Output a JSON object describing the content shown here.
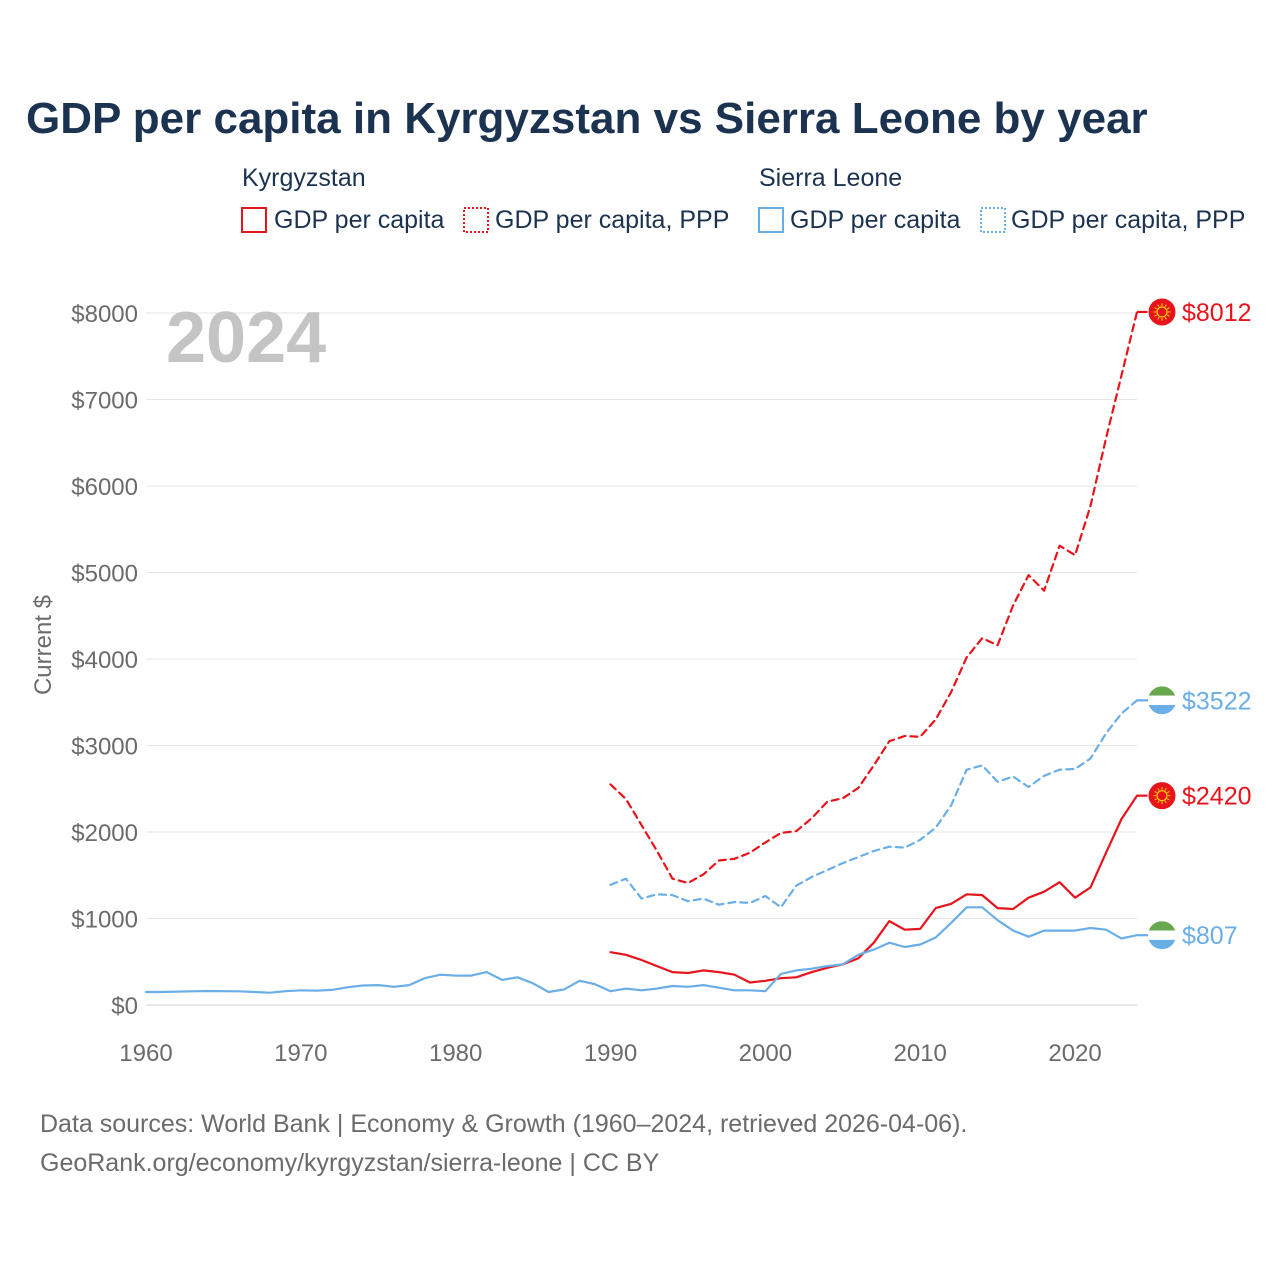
{
  "chart_data": {
    "type": "line",
    "title": "GDP per capita in Kyrgyzstan vs Sierra Leone by year",
    "ylabel": "Current $",
    "xlabel": "",
    "xlim": [
      1960,
      2024
    ],
    "ylim": [
      0,
      8000
    ],
    "year_label": "2024",
    "x_ticks": [
      1960,
      1970,
      1980,
      1990,
      2000,
      2010,
      2020
    ],
    "x_tick_labels": [
      "1960",
      "1970",
      "1980",
      "1990",
      "2000",
      "2010",
      "2020"
    ],
    "y_ticks": [
      0,
      1000,
      2000,
      3000,
      4000,
      5000,
      6000,
      7000,
      8000
    ],
    "y_tick_labels": [
      "$0",
      "$1000",
      "$2000",
      "$3000",
      "$4000",
      "$5000",
      "$6000",
      "$7000",
      "$8000"
    ],
    "grid": true,
    "legend_groups": [
      {
        "country": "Kyrgyzstan",
        "items": [
          "GDP per capita",
          "GDP per capita, PPP"
        ]
      },
      {
        "country": "Sierra Leone",
        "items": [
          "GDP per capita",
          "GDP per capita, PPP"
        ]
      }
    ],
    "series": [
      {
        "name": "Kyrgyzstan GDP per capita",
        "country": "Kyrgyzstan",
        "style": "solid",
        "color": "#e8141c",
        "end_label": "$2420",
        "x": [
          1990,
          1991,
          1992,
          1993,
          1994,
          1995,
          1996,
          1997,
          1998,
          1999,
          2000,
          2001,
          2002,
          2003,
          2004,
          2005,
          2006,
          2007,
          2008,
          2009,
          2010,
          2011,
          2012,
          2013,
          2014,
          2015,
          2016,
          2017,
          2018,
          2019,
          2020,
          2021,
          2022,
          2023,
          2024
        ],
        "values": [
          610,
          580,
          520,
          450,
          380,
          370,
          400,
          380,
          350,
          260,
          280,
          310,
          320,
          380,
          430,
          470,
          540,
          720,
          970,
          870,
          880,
          1120,
          1170,
          1280,
          1270,
          1120,
          1110,
          1240,
          1310,
          1420,
          1240,
          1360,
          1760,
          2150,
          2420
        ]
      },
      {
        "name": "Kyrgyzstan GDP per capita, PPP",
        "country": "Kyrgyzstan",
        "style": "dashed",
        "color": "#e8141c",
        "end_label": "$8012",
        "x": [
          1990,
          1991,
          1992,
          1993,
          1994,
          1995,
          1996,
          1997,
          1998,
          1999,
          2000,
          2001,
          2002,
          2003,
          2004,
          2005,
          2006,
          2007,
          2008,
          2009,
          2010,
          2011,
          2012,
          2013,
          2014,
          2015,
          2016,
          2017,
          2018,
          2019,
          2020,
          2021,
          2022,
          2023,
          2024
        ],
        "values": [
          2550,
          2380,
          2080,
          1780,
          1460,
          1410,
          1510,
          1670,
          1690,
          1760,
          1880,
          1990,
          2010,
          2160,
          2350,
          2390,
          2510,
          2770,
          3050,
          3110,
          3100,
          3300,
          3620,
          4020,
          4240,
          4160,
          4620,
          4970,
          4790,
          5310,
          5200,
          5770,
          6550,
          7280,
          8012
        ]
      },
      {
        "name": "Sierra Leone GDP per capita",
        "country": "Sierra Leone",
        "style": "solid",
        "color": "#6aaee8",
        "end_label": "$807",
        "x": [
          1960,
          1961,
          1962,
          1963,
          1964,
          1965,
          1966,
          1967,
          1968,
          1969,
          1970,
          1971,
          1972,
          1973,
          1974,
          1975,
          1976,
          1977,
          1978,
          1979,
          1980,
          1981,
          1982,
          1983,
          1984,
          1985,
          1986,
          1987,
          1988,
          1989,
          1990,
          1991,
          1992,
          1993,
          1994,
          1995,
          1996,
          1997,
          1998,
          1999,
          2000,
          2001,
          2002,
          2003,
          2004,
          2005,
          2006,
          2007,
          2008,
          2009,
          2010,
          2011,
          2012,
          2013,
          2014,
          2015,
          2016,
          2017,
          2018,
          2019,
          2020,
          2021,
          2022,
          2023,
          2024
        ],
        "values": [
          150,
          150,
          155,
          158,
          162,
          160,
          158,
          150,
          142,
          160,
          170,
          165,
          175,
          205,
          225,
          230,
          210,
          230,
          310,
          350,
          340,
          340,
          380,
          290,
          320,
          250,
          150,
          180,
          280,
          240,
          160,
          190,
          170,
          190,
          220,
          210,
          230,
          200,
          170,
          170,
          160,
          360,
          400,
          420,
          450,
          470,
          580,
          640,
          720,
          670,
          700,
          780,
          950,
          1130,
          1130,
          980,
          860,
          790,
          860,
          860,
          860,
          890,
          870,
          770,
          807
        ]
      },
      {
        "name": "Sierra Leone GDP per capita, PPP",
        "country": "Sierra Leone",
        "style": "dashed",
        "color": "#6aaee8",
        "end_label": "$3522",
        "x": [
          1990,
          1991,
          1992,
          1993,
          1994,
          1995,
          1996,
          1997,
          1998,
          1999,
          2000,
          2001,
          2002,
          2003,
          2004,
          2005,
          2006,
          2007,
          2008,
          2009,
          2010,
          2011,
          2012,
          2013,
          2014,
          2015,
          2016,
          2017,
          2018,
          2019,
          2020,
          2021,
          2022,
          2023,
          2024
        ],
        "values": [
          1390,
          1460,
          1230,
          1280,
          1270,
          1200,
          1230,
          1160,
          1190,
          1180,
          1260,
          1130,
          1380,
          1480,
          1560,
          1640,
          1710,
          1780,
          1830,
          1820,
          1910,
          2050,
          2310,
          2720,
          2770,
          2580,
          2640,
          2520,
          2650,
          2720,
          2730,
          2850,
          3140,
          3370,
          3522
        ]
      }
    ]
  },
  "footer": {
    "source_line1": "Data sources: World Bank | Economy & Growth (1960–2024, retrieved 2026-04-06).",
    "source_line2": "GeoRank.org/economy/kyrgyzstan/sierra-leone | CC BY"
  },
  "colors": {
    "kyrgyzstan": "#e8141c",
    "sierra_leone": "#6aaee8",
    "title": "#1b3350",
    "tick": "#6b6b6b",
    "grid": "#e6e6e6",
    "year_label": "#c4c4c4",
    "flag_green": "#6aa84f",
    "flag_white": "#ffffff",
    "flag_blue": "#6aaee8"
  }
}
